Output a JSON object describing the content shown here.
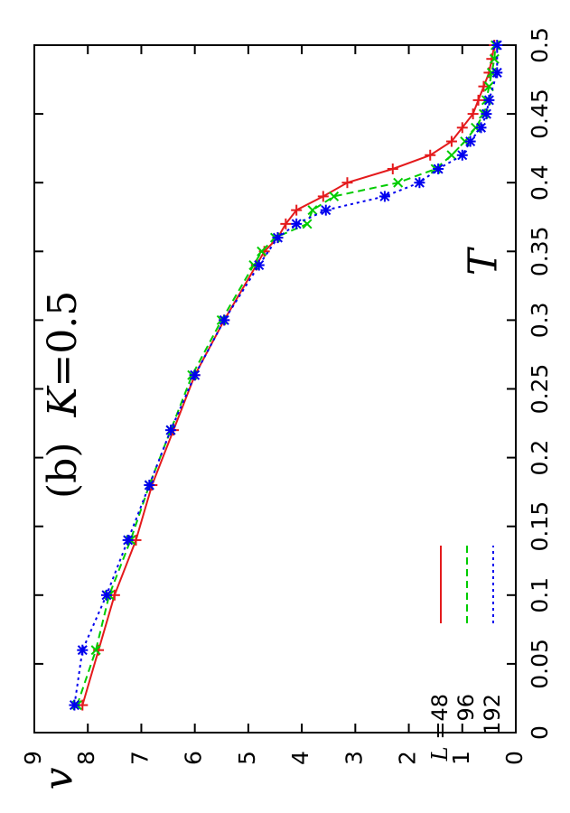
{
  "chart_data": {
    "type": "line",
    "annotation_prefix": "(b)",
    "annotation_param": "K",
    "annotation_value": "=0.5",
    "xlabel": "T",
    "ylabel": "v",
    "xlim": [
      0,
      0.5
    ],
    "ylim": [
      0,
      9
    ],
    "x_ticks": [
      "0",
      "0.05",
      "0.1",
      "0.15",
      "0.2",
      "0.25",
      "0.3",
      "0.35",
      "0.4",
      "0.45",
      "0.5"
    ],
    "y_ticks": [
      "0",
      "1",
      "2",
      "3",
      "4",
      "5",
      "6",
      "7",
      "8",
      "9"
    ],
    "legend_prefix": "L",
    "legend_placement": "bottom-left",
    "series": [
      {
        "name": "=48",
        "color": "#e41a1c",
        "marker": "plus",
        "dash": "solid",
        "points": [
          [
            0.02,
            8.1
          ],
          [
            0.06,
            7.8
          ],
          [
            0.1,
            7.5
          ],
          [
            0.14,
            7.1
          ],
          [
            0.18,
            6.8
          ],
          [
            0.22,
            6.4
          ],
          [
            0.26,
            6.0
          ],
          [
            0.3,
            5.45
          ],
          [
            0.34,
            4.85
          ],
          [
            0.35,
            4.7
          ],
          [
            0.36,
            4.45
          ],
          [
            0.37,
            4.3
          ],
          [
            0.38,
            4.1
          ],
          [
            0.39,
            3.6
          ],
          [
            0.4,
            3.15
          ],
          [
            0.41,
            2.3
          ],
          [
            0.42,
            1.6
          ],
          [
            0.43,
            1.2
          ],
          [
            0.44,
            1.0
          ],
          [
            0.45,
            0.8
          ],
          [
            0.46,
            0.7
          ],
          [
            0.47,
            0.6
          ],
          [
            0.48,
            0.5
          ],
          [
            0.49,
            0.45
          ],
          [
            0.5,
            0.4
          ]
        ]
      },
      {
        "name": "96",
        "color": "#00cc00",
        "marker": "x",
        "dash": "dashed",
        "points": [
          [
            0.02,
            8.2
          ],
          [
            0.06,
            7.85
          ],
          [
            0.1,
            7.6
          ],
          [
            0.14,
            7.2
          ],
          [
            0.18,
            6.85
          ],
          [
            0.22,
            6.45
          ],
          [
            0.26,
            6.05
          ],
          [
            0.3,
            5.5
          ],
          [
            0.34,
            4.9
          ],
          [
            0.35,
            4.75
          ],
          [
            0.36,
            4.5
          ],
          [
            0.37,
            3.9
          ],
          [
            0.38,
            3.8
          ],
          [
            0.39,
            3.4
          ],
          [
            0.4,
            2.2
          ],
          [
            0.41,
            1.5
          ],
          [
            0.42,
            1.2
          ],
          [
            0.43,
            0.95
          ],
          [
            0.44,
            0.75
          ],
          [
            0.45,
            0.6
          ],
          [
            0.46,
            0.55
          ],
          [
            0.47,
            0.5
          ],
          [
            0.48,
            0.45
          ],
          [
            0.49,
            0.4
          ],
          [
            0.5,
            0.38
          ]
        ]
      },
      {
        "name": "192",
        "color": "#0000ee",
        "marker": "asterisk",
        "dash": "dotted",
        "points": [
          [
            0.02,
            8.25
          ],
          [
            0.06,
            8.1
          ],
          [
            0.1,
            7.65
          ],
          [
            0.14,
            7.25
          ],
          [
            0.18,
            6.85
          ],
          [
            0.22,
            6.45
          ],
          [
            0.26,
            6.0
          ],
          [
            0.3,
            5.45
          ],
          [
            0.34,
            4.8
          ],
          [
            0.36,
            4.45
          ],
          [
            0.37,
            4.1
          ],
          [
            0.38,
            3.55
          ],
          [
            0.39,
            2.45
          ],
          [
            0.4,
            1.8
          ],
          [
            0.41,
            1.45
          ],
          [
            0.42,
            1.0
          ],
          [
            0.43,
            0.85
          ],
          [
            0.44,
            0.65
          ],
          [
            0.45,
            0.55
          ],
          [
            0.46,
            0.5
          ],
          [
            0.48,
            0.35
          ],
          [
            0.5,
            0.35
          ]
        ]
      }
    ]
  }
}
